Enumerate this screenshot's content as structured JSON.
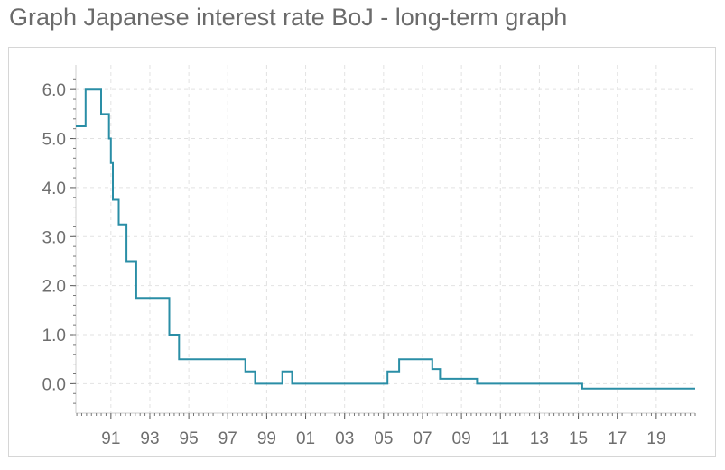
{
  "page": {
    "title": "Graph Japanese interest rate BoJ - long-term graph"
  },
  "chart_data": {
    "type": "line",
    "step": true,
    "title": "Graph Japanese interest rate BoJ - long-term graph",
    "xlabel": "",
    "ylabel": "",
    "ylim": [
      -0.6,
      6.5
    ],
    "xlim": [
      1989.2,
      2021.0
    ],
    "y_ticks": [
      0.0,
      1.0,
      2.0,
      3.0,
      4.0,
      5.0,
      6.0
    ],
    "y_tick_labels": [
      "0.0",
      "1.0",
      "2.0",
      "3.0",
      "4.0",
      "5.0",
      "6.0"
    ],
    "x_ticks": [
      1991,
      1993,
      1995,
      1997,
      1999,
      2001,
      2003,
      2005,
      2007,
      2009,
      2011,
      2013,
      2015,
      2017,
      2019
    ],
    "x_tick_labels": [
      "91",
      "93",
      "95",
      "97",
      "99",
      "01",
      "03",
      "05",
      "07",
      "09",
      "11",
      "13",
      "15",
      "17",
      "19"
    ],
    "grid": true,
    "line_color": "#2a8ea6",
    "series": [
      {
        "x": [
          1989.2,
          1989.7,
          1990.5,
          1990.9,
          1991.0,
          1991.1,
          1991.4,
          1991.8,
          1992.3,
          1993.0,
          1994.0,
          1994.5,
          1997.9,
          1998.4,
          1999.8,
          2000.3,
          2005.2,
          2005.8,
          2007.5,
          2007.9,
          2009.8,
          2015.2,
          2021.0
        ],
        "y": [
          5.25,
          6.0,
          5.5,
          5.0,
          4.5,
          3.75,
          3.25,
          2.5,
          1.75,
          1.75,
          1.0,
          0.5,
          0.25,
          0.0,
          0.25,
          0.0,
          0.25,
          0.5,
          0.3,
          0.1,
          0.0,
          -0.1,
          -0.1
        ]
      }
    ]
  }
}
